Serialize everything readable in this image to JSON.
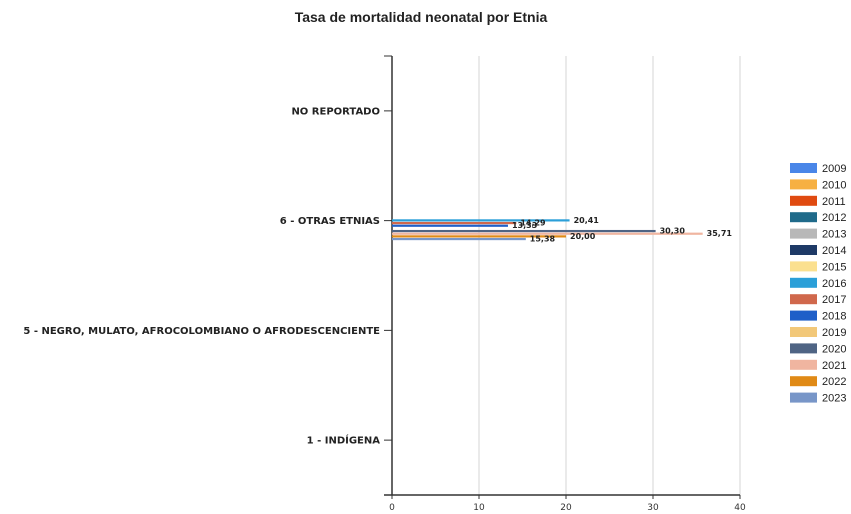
{
  "chart_data": {
    "type": "bar",
    "orientation": "horizontal",
    "title": "Tasa de mortalidad neonatal por Etnia",
    "xlim": [
      0,
      40
    ],
    "x_ticks": [
      0,
      10,
      20,
      30,
      40
    ],
    "grid": true,
    "legend_position": "right",
    "categories": [
      "NO REPORTADO",
      "6 - OTRAS ETNIAS",
      "5 - NEGRO, MULATO, AFROCOLOMBIANO O AFRODESCENCIENTE",
      "1 - INDÍGENA"
    ],
    "series": [
      {
        "name": "2009",
        "color": "#4a86e8",
        "values": [
          null,
          null,
          null,
          null
        ]
      },
      {
        "name": "2010",
        "color": "#f6b042",
        "values": [
          null,
          null,
          null,
          null
        ]
      },
      {
        "name": "2011",
        "color": "#e04a10",
        "values": [
          null,
          null,
          null,
          null
        ]
      },
      {
        "name": "2012",
        "color": "#1f6a8a",
        "values": [
          null,
          null,
          null,
          null
        ]
      },
      {
        "name": "2013",
        "color": "#b8b8b8",
        "values": [
          null,
          null,
          null,
          null
        ]
      },
      {
        "name": "2014",
        "color": "#1e3a66",
        "values": [
          null,
          null,
          null,
          null
        ]
      },
      {
        "name": "2015",
        "color": "#fbe08f",
        "values": [
          null,
          null,
          null,
          null
        ]
      },
      {
        "name": "2016",
        "color": "#2b9fd8",
        "values": [
          null,
          20.41,
          null,
          null
        ],
        "label": "20,41"
      },
      {
        "name": "2017",
        "color": "#d0684c",
        "values": [
          null,
          14.29,
          null,
          null
        ],
        "label": "14,29"
      },
      {
        "name": "2018",
        "color": "#1f5fc8",
        "values": [
          null,
          13.33,
          null,
          null
        ],
        "label": "13,33"
      },
      {
        "name": "2019",
        "color": "#f2c879",
        "values": [
          null,
          null,
          null,
          null
        ]
      },
      {
        "name": "2020",
        "color": "#4f6484",
        "values": [
          null,
          30.3,
          null,
          null
        ],
        "label": "30,30"
      },
      {
        "name": "2021",
        "color": "#f0b5a0",
        "values": [
          null,
          35.71,
          null,
          null
        ],
        "label": "35,71"
      },
      {
        "name": "2022",
        "color": "#e08a16",
        "values": [
          null,
          20.0,
          null,
          null
        ],
        "label": "20,00"
      },
      {
        "name": "2023",
        "color": "#7896c8",
        "values": [
          null,
          15.38,
          null,
          null
        ],
        "label": "15,38"
      }
    ]
  }
}
